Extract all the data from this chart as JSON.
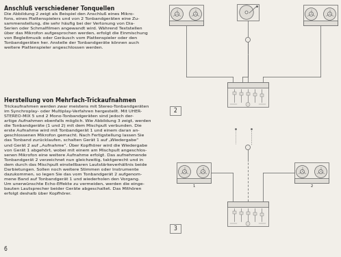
{
  "bg_color": "#f2efe9",
  "text_color": "#222222",
  "title1": "Anschluß verschiedener Tonquellen",
  "body1": "Die Abbildung 2 zeigt als Beispiel den Anschluß eines Mikro-\nfons, eines Plattenspielers und von 2 Tonbandgeräten eine Zu-\nsammenstellung, die sehr häufig bei der Vertonung von Dia-\nSerien oder Schmalfilmen angewandt wird. Während Textstellen\nüber das Mikrofon aufgesprochen werden, erfolgt die Einmischung\nvon Begleitmusik oder Geräusch vom Plattenspieler oder den\nTonbandgeräten her. Anstelle der Tonbandgeräte können auch\nweitere Plattenspieler angeschlossen werden.",
  "title2": "Herstellung von Mehrfach-Trickaufnahmen",
  "body2": "Trickaufnahmen werden zwar meistens mit Stereo-Tonbandgeräten\nim Synchroplay- oder Multiplay-Verfahren hergestellt. Mit UHER-\nSTEREO-MIX 5 und 2 Mono-Tonbandgeräten sind jedoch der-\nartige Aufnahmen ebenfalls möglich. Wie Abbildung 3 zeigt, werden\ndie Tonbandgeräte (1 und 2) mit dem Mischpult verbunden. Die\nerste Aufnahme wird mit Tonbandgerät 1 und einem daran an-\ngeschlossenen Mikrofon gemacht. Nach Fertigstellung lassen Sie\ndas Tonband zurücklaufen, schalten Gerät 1 auf „Wiedergabe“\nund Gerät 2 auf „Aufnahme“. Über Kopfhörer wird die Wiedergabe\nvon Gerät 1 abgehört, wobei mit einem am Mischpult angeschlos-\nsenen Mikrofon eine weitere Aufnahme erfolgt. Das aufnehmende\nTonbandgerät 2 verzeichnet nun gleichzeitig, taktgerecht und in\ndem durch das Mischpult einstellbaren Lautstärkeverhältnis beide\nDarbietungen. Sollen noch weitere Stimmen oder Instrumente\ndazukommen, so legen Sie das vom Tonbandgerät 2 aufgenom-\nmene Band auf Tonbandgerät 1 und wiederholen den Vorgang.\nUm unerwünschte Echo-Effekte zu vermeiden, werden die einge-\nbauten Lautsprecher beider Geräte abgeschaltet. Das Mithören\nerfolgt deshalb über Kopfhörer.",
  "page_num": "6",
  "col_split": 245,
  "lw": 0.55,
  "ec": "#666666",
  "fc_device": "#e0ddd7",
  "fc_white": "#eeebe5"
}
